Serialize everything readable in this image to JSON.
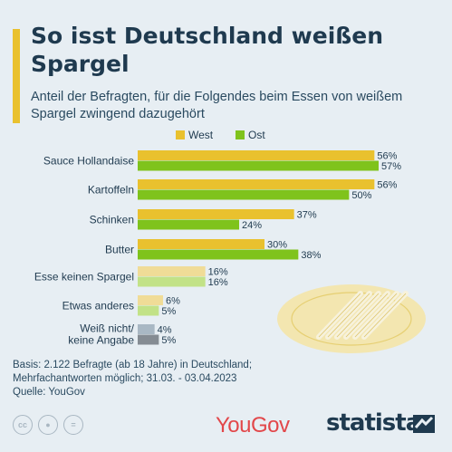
{
  "header": {
    "title": "So isst Deutschland weißen Spargel",
    "subtitle": "Anteil der Befragten, für die Folgendes beim Essen von weißem Spargel zwingend dazugehört"
  },
  "footer": {
    "note_line1": "Basis: 2.122 Befragte (ab 18 Jahre) in Deutschland;",
    "note_line2": "Mehrfachantworten möglich; 31.03. - 03.04.2023",
    "source": "Quelle: YouGov",
    "yougov_logo": "YouGov",
    "statista_logo": "statista",
    "license_icons": [
      "cc-icon",
      "attribution-icon",
      "equals-icon"
    ]
  },
  "colors": {
    "west": "#e9c12e",
    "ost": "#7fc31c",
    "west_light": "#f0dc97",
    "ost_light": "#c2e287",
    "gray_light": "#a9b8c4",
    "gray_dark": "#858c93"
  },
  "chart_data": {
    "type": "bar",
    "orientation": "horizontal",
    "title": "So isst Deutschland weißen Spargel",
    "unit": "%",
    "categories": [
      "Sauce Hollandaise",
      "Kartoffeln",
      "Schinken",
      "Butter",
      "Esse keinen Spargel",
      "Etwas anderes",
      "Weiß nicht/\nkeine Angabe"
    ],
    "series": [
      {
        "name": "West",
        "values": [
          56,
          56,
          37,
          30,
          16,
          6,
          4
        ]
      },
      {
        "name": "Ost",
        "values": [
          57,
          50,
          24,
          38,
          16,
          5,
          5
        ]
      }
    ],
    "legend": "top",
    "grid": false
  }
}
